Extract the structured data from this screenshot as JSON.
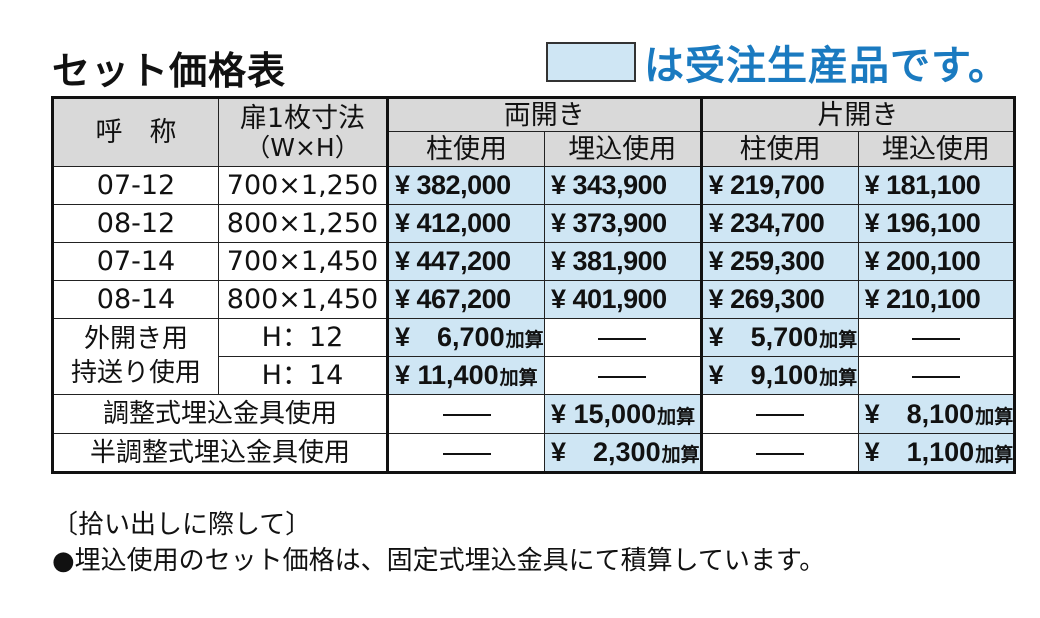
{
  "title": "セット価格表",
  "legend_text": "は受注生産品です。",
  "colors": {
    "highlight": "#cfe6f4",
    "header": "#d9d9d9",
    "accent_text": "#1a7ac0"
  },
  "header": {
    "name": "呼　称",
    "size_line1": "扉1枚寸法",
    "size_line2": "（W×H）",
    "double": "両開き",
    "single": "片開き",
    "pillar": "柱使用",
    "embedded": "埋込使用"
  },
  "rows": [
    {
      "name": "07-12",
      "size": "700×1,250",
      "prices": [
        "¥ 382,000",
        "¥ 343,900",
        "¥ 219,700",
        "¥ 181,100"
      ]
    },
    {
      "name": "08-12",
      "size": "800×1,250",
      "prices": [
        "¥ 412,000",
        "¥ 373,900",
        "¥ 234,700",
        "¥ 196,100"
      ]
    },
    {
      "name": "07-14",
      "size": "700×1,450",
      "prices": [
        "¥ 447,200",
        "¥ 381,900",
        "¥ 259,300",
        "¥ 200,100"
      ]
    },
    {
      "name": "08-14",
      "size": "800×1,450",
      "prices": [
        "¥ 467,200",
        "¥ 401,900",
        "¥ 269,300",
        "¥ 210,100"
      ]
    }
  ],
  "options": {
    "outward_line1": "外開き用",
    "outward_line2": "持送り使用",
    "h12": "H：12",
    "h14": "H：14",
    "h12_double_pillar": "¥　6,700",
    "h14_double_pillar": "¥ 11,400",
    "h12_single_pillar": "¥　5,700",
    "h14_single_pillar": "¥　9,100",
    "adjust_label": "調整式埋込金具使用",
    "adjust_double_embedded": "¥ 15,000",
    "adjust_single_embedded": "¥　8,100",
    "semi_adjust_label": "半調整式埋込金具使用",
    "semi_double_embedded": "¥　2,300",
    "semi_single_embedded": "¥　1,100",
    "add_unit": "加算"
  },
  "notes": {
    "heading": "〔拾い出しに際して〕",
    "bullet": "●埋込使用のセット価格は、固定式埋込金具にて積算しています。"
  }
}
